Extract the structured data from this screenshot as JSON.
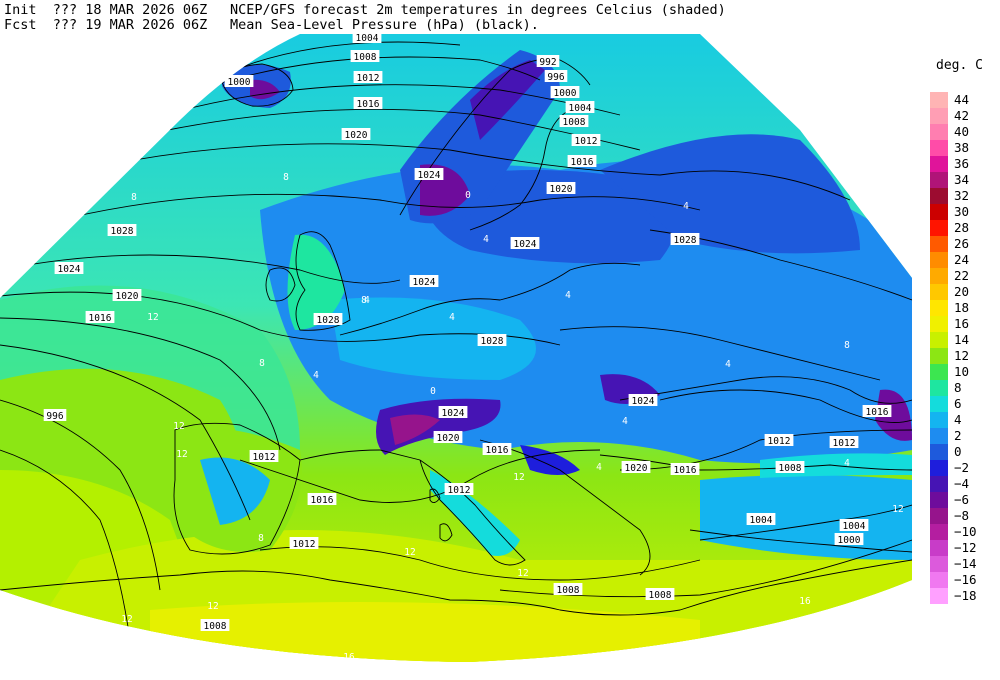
{
  "header": {
    "init_label": "Init",
    "init_value": "??? 18 MAR 2026 06Z",
    "fcst_label": "Fcst",
    "fcst_value": "??? 19 MAR 2026 06Z",
    "title_line1": "NCEP/GFS forecast 2m temperatures in degrees Celcius (shaded)",
    "title_line2": "Mean Sea-Level Pressure (hPa) (black)."
  },
  "colorbar": {
    "unit_label": "deg. C",
    "entries": [
      {
        "label": "44",
        "color": "#ffb4b4"
      },
      {
        "label": "42",
        "color": "#ff9eb4"
      },
      {
        "label": "40",
        "color": "#ff7eb0"
      },
      {
        "label": "38",
        "color": "#ff4ca8"
      },
      {
        "label": "36",
        "color": "#e0149a"
      },
      {
        "label": "34",
        "color": "#b01478"
      },
      {
        "label": "32",
        "color": "#9c0c30"
      },
      {
        "label": "30",
        "color": "#cc0000"
      },
      {
        "label": "28",
        "color": "#ff1400"
      },
      {
        "label": "26",
        "color": "#ff5a00"
      },
      {
        "label": "24",
        "color": "#ff8c00"
      },
      {
        "label": "22",
        "color": "#ffaa00"
      },
      {
        "label": "20",
        "color": "#ffc800"
      },
      {
        "label": "18",
        "color": "#ffe600"
      },
      {
        "label": "16",
        "color": "#f0f000"
      },
      {
        "label": "14",
        "color": "#c8f000"
      },
      {
        "label": "12",
        "color": "#8ce614"
      },
      {
        "label": "10",
        "color": "#3ce650"
      },
      {
        "label": "8",
        "color": "#1ee6a0"
      },
      {
        "label": "6",
        "color": "#14dcdc"
      },
      {
        "label": "4",
        "color": "#14b4f0"
      },
      {
        "label": "2",
        "color": "#1e8cf0"
      },
      {
        "label": "0",
        "color": "#1e5adc"
      },
      {
        "label": "−2",
        "color": "#1e1edc"
      },
      {
        "label": "−4",
        "color": "#4614b4"
      },
      {
        "label": "−6",
        "color": "#6e0c9c"
      },
      {
        "label": "−8",
        "color": "#96148c"
      },
      {
        "label": "−10",
        "color": "#b41ea0"
      },
      {
        "label": "−12",
        "color": "#c83cc8"
      },
      {
        "label": "−14",
        "color": "#dc5adc"
      },
      {
        "label": "−16",
        "color": "#f078f0"
      },
      {
        "label": "−18",
        "color": "#ffa0ff"
      }
    ]
  },
  "map": {
    "isobar_labels": [
      {
        "text": "1004"
      },
      {
        "text": "1008"
      },
      {
        "text": "1012"
      },
      {
        "text": "1016"
      },
      {
        "text": "1000"
      },
      {
        "text": "1020"
      },
      {
        "text": "992"
      },
      {
        "text": "996"
      },
      {
        "text": "1000"
      },
      {
        "text": "1004"
      },
      {
        "text": "1008"
      },
      {
        "text": "1012"
      },
      {
        "text": "1016"
      },
      {
        "text": "1020"
      },
      {
        "text": "1024"
      },
      {
        "text": "1028"
      },
      {
        "text": "1024"
      },
      {
        "text": "1028"
      },
      {
        "text": "1024"
      },
      {
        "text": "1020"
      },
      {
        "text": "1016"
      },
      {
        "text": "1028"
      },
      {
        "text": "1024"
      },
      {
        "text": "1028"
      },
      {
        "text": "996"
      },
      {
        "text": "1012"
      },
      {
        "text": "1016"
      },
      {
        "text": "1012"
      },
      {
        "text": "1020"
      },
      {
        "text": "1024"
      },
      {
        "text": "1024"
      },
      {
        "text": "1016"
      },
      {
        "text": "1012"
      },
      {
        "text": "1020"
      },
      {
        "text": "1016"
      },
      {
        "text": "1012"
      },
      {
        "text": "1008"
      },
      {
        "text": "1012"
      },
      {
        "text": "1016"
      },
      {
        "text": "1004"
      },
      {
        "text": "1004"
      },
      {
        "text": "1000"
      },
      {
        "text": "1008"
      },
      {
        "text": "1008"
      },
      {
        "text": "1008"
      }
    ],
    "temperature_labels": [
      {
        "text": "8"
      },
      {
        "text": "8"
      },
      {
        "text": "12"
      },
      {
        "text": "4"
      },
      {
        "text": "4"
      },
      {
        "text": "4"
      },
      {
        "text": "4"
      },
      {
        "text": "4"
      },
      {
        "text": "8"
      },
      {
        "text": "12"
      },
      {
        "text": "12"
      },
      {
        "text": "12"
      },
      {
        "text": "12"
      },
      {
        "text": "16"
      },
      {
        "text": "12"
      },
      {
        "text": "0"
      },
      {
        "text": "0"
      },
      {
        "text": "4"
      },
      {
        "text": "4"
      },
      {
        "text": "8"
      },
      {
        "text": "4"
      },
      {
        "text": "4"
      },
      {
        "text": "12"
      },
      {
        "text": "4"
      },
      {
        "text": "16"
      },
      {
        "text": "12"
      },
      {
        "text": "8"
      },
      {
        "text": "8"
      },
      {
        "text": "12"
      }
    ]
  }
}
